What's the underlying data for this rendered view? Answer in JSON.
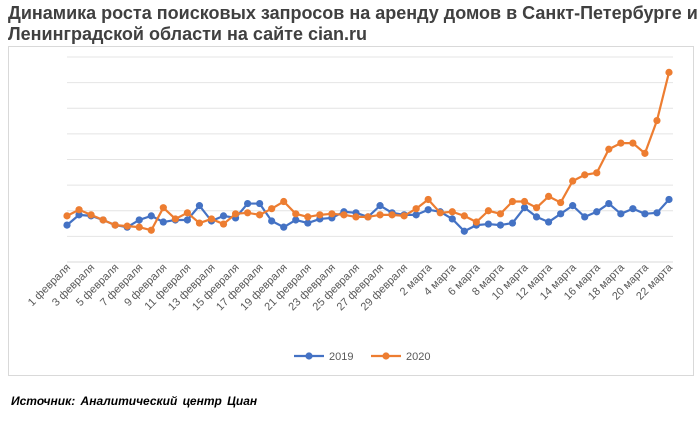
{
  "title": "Динамика роста поисковых запросов на аренду домов в Санкт-Петербурге и Ленинградской области на сайте cian.ru",
  "source": "Источник: Аналитический центр Циан",
  "chart_data": {
    "type": "line",
    "title": "Динамика роста поисковых запросов на аренду домов в Санкт-Петербурге и Ленинградской области на сайте cian.ru",
    "xlabel": "",
    "ylabel": "",
    "ylim": [
      0,
      4
    ],
    "grid": true,
    "y_axis_labels": false,
    "legend": "bottom",
    "x_tick_labels": [
      "1 февраля",
      "3 февраля",
      "5 февраля",
      "7 февраля",
      "9 февраля",
      "11 февраля",
      "13 февраля",
      "15 февраля",
      "17 февраля",
      "19 февраля",
      "21 февраля",
      "23 февраля",
      "25 февраля",
      "27 февраля",
      "29 февраля",
      "2 марта",
      "4 марта",
      "6 марта",
      "8 марта",
      "10 марта",
      "12 марта",
      "14 марта",
      "16 марта",
      "18 марта",
      "20 марта",
      "22 марта"
    ],
    "x": [
      "1 февраля",
      "2 февраля",
      "3 февраля",
      "4 февраля",
      "5 февраля",
      "6 февраля",
      "7 февраля",
      "8 февраля",
      "9 февраля",
      "10 февраля",
      "11 февраля",
      "12 февраля",
      "13 февраля",
      "14 февраля",
      "15 февраля",
      "16 февраля",
      "17 февраля",
      "18 февраля",
      "19 февраля",
      "20 февраля",
      "21 февраля",
      "22 февраля",
      "23 февраля",
      "24 февраля",
      "25 февраля",
      "26 февраля",
      "27 февраля",
      "28 февраля",
      "29 февраля",
      "1 марта",
      "2 марта",
      "3 марта",
      "4 марта",
      "5 марта",
      "6 марта",
      "7 марта",
      "8 марта",
      "9 марта",
      "10 марта",
      "11 марта",
      "12 марта",
      "13 марта",
      "14 марта",
      "15 марта",
      "16 марта",
      "17 марта",
      "18 марта",
      "19 марта",
      "20 марта",
      "21 марта",
      "22 марта"
    ],
    "series": [
      {
        "name": "2019",
        "color": "#4472c4",
        "values": [
          0.72,
          0.92,
          0.9,
          0.82,
          0.72,
          0.68,
          0.82,
          0.9,
          0.78,
          0.82,
          0.82,
          1.1,
          0.8,
          0.9,
          0.86,
          1.14,
          1.14,
          0.8,
          0.68,
          0.82,
          0.76,
          0.84,
          0.86,
          0.98,
          0.96,
          0.88,
          1.1,
          0.96,
          0.92,
          0.92,
          1.02,
          0.98,
          0.84,
          0.6,
          0.72,
          0.74,
          0.72,
          0.76,
          1.06,
          0.88,
          0.78,
          0.94,
          1.1,
          0.88,
          0.98,
          1.14,
          0.94,
          1.04,
          0.94,
          0.96,
          1.22
        ]
      },
      {
        "name": "2020",
        "color": "#ed7d31",
        "values": [
          0.9,
          1.02,
          0.92,
          0.82,
          0.72,
          0.7,
          0.68,
          0.62,
          1.06,
          0.84,
          0.96,
          0.76,
          0.84,
          0.74,
          0.94,
          0.96,
          0.92,
          1.04,
          1.18,
          0.94,
          0.88,
          0.92,
          0.94,
          0.92,
          0.88,
          0.88,
          0.92,
          0.92,
          0.9,
          1.04,
          1.22,
          0.96,
          0.98,
          0.9,
          0.78,
          1.0,
          0.94,
          1.18,
          1.18,
          1.06,
          1.28,
          1.16,
          1.58,
          1.7,
          1.74,
          2.2,
          2.32,
          2.32,
          2.12,
          2.76,
          3.7
        ]
      }
    ]
  }
}
